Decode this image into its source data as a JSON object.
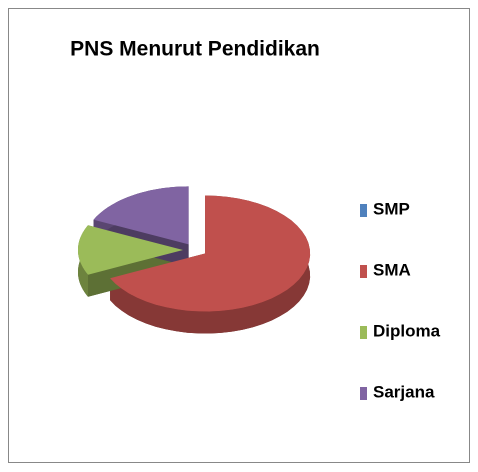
{
  "chart_data": {
    "type": "pie3d",
    "title": "PNS Menurut Pendidikan",
    "categories": [
      "SMP",
      "SMA",
      "Diploma",
      "Sarjana"
    ],
    "values": [
      0,
      68,
      14,
      18
    ],
    "colors": [
      "#4f81bd",
      "#c0504d",
      "#9bbb59",
      "#8064a2"
    ],
    "legend": "right"
  }
}
